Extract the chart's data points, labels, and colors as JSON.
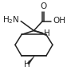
{
  "bg_color": "#ffffff",
  "line_color": "#222222",
  "text_color": "#222222",
  "lw": 1.1,
  "figsize": [
    0.84,
    0.98
  ],
  "dpi": 100,
  "xlim": [
    0,
    84
  ],
  "ylim": [
    0,
    98
  ]
}
